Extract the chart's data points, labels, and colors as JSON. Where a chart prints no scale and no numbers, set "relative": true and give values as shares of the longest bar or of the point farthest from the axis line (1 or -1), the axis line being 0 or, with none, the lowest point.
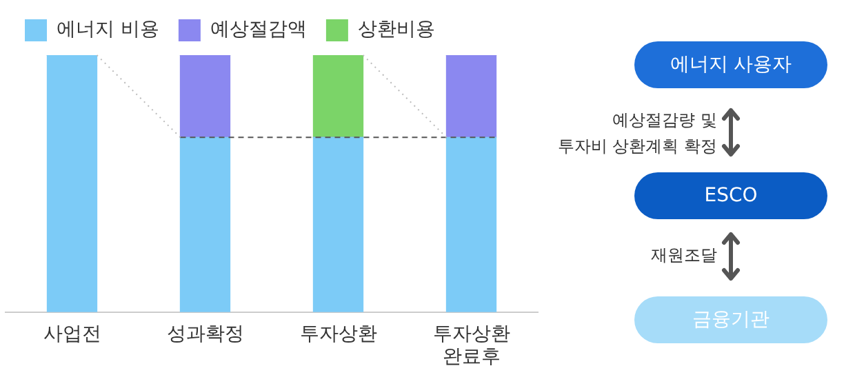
{
  "chart_data": {
    "type": "bar",
    "stacked": true,
    "relative": true,
    "grid": false,
    "legend": "top left",
    "tick_labels": "x",
    "categories": [
      "사업전",
      "성과확정",
      "투자상환",
      "투자상환\n완료후"
    ],
    "series": [
      {
        "name": "에너지 비용",
        "color": "#7ccbf7",
        "values": [
          1,
          0.68,
          0.68,
          0.68
        ]
      },
      {
        "name": "예상절감액",
        "color": "#8b88f0",
        "values": [
          0,
          0.32,
          0,
          0.32
        ]
      },
      {
        "name": "상환비용",
        "color": "#7bd468",
        "values": [
          0,
          0,
          0.32,
          0
        ]
      }
    ],
    "ref_lines": [
      {
        "axis": "y",
        "value": 0.68,
        "line_style": "dashed",
        "color": "#555555"
      }
    ],
    "annotations": [
      "에너지 사용자",
      "예상절감량 및\n투자비 상환계획 확정",
      "ESCO",
      "재원조달",
      "금융기관"
    ]
  }
}
